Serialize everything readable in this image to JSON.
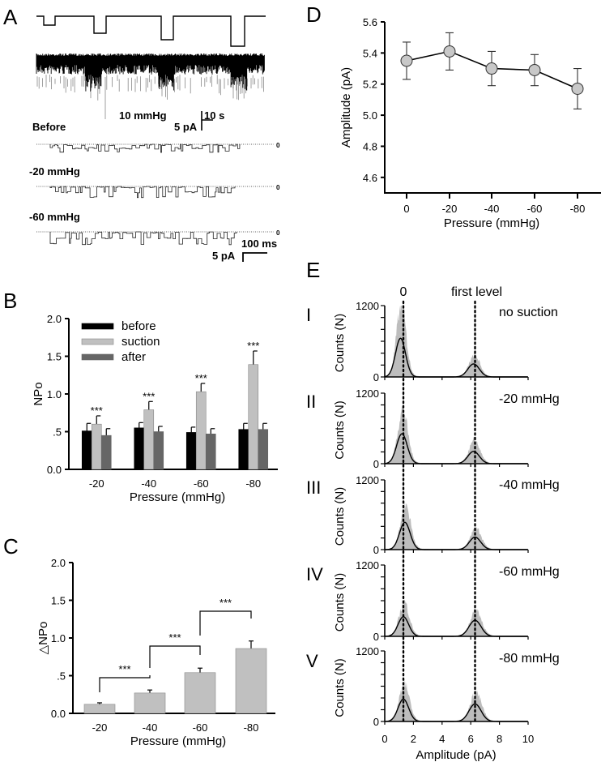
{
  "panels": {
    "A": {
      "label": "A",
      "scale_bar_1": {
        "pressure": "10 mmHg",
        "time": "10 s",
        "current": "5 pA"
      },
      "traces": [
        {
          "label": "Before",
          "zero": "0"
        },
        {
          "label": "-20 mmHg",
          "zero": "0"
        },
        {
          "label": "-60 mmHg",
          "zero": "0"
        }
      ],
      "scale_bar_2": {
        "time": "100 ms",
        "current": "5 pA"
      },
      "pressure_steps_mmHg": [
        -10,
        -20,
        -40,
        -60
      ]
    },
    "B": {
      "label": "B"
    },
    "C": {
      "label": "C"
    },
    "D": {
      "label": "D"
    },
    "E": {
      "label": "E"
    }
  },
  "chart_data": [
    {
      "id": "B",
      "type": "bar",
      "title": "",
      "xlabel": "Pressure (mmHg)",
      "ylabel": "NPo",
      "ylim": [
        0,
        2.0
      ],
      "yticks": [
        "0.0",
        ".5",
        "1.0",
        "1.5",
        "2.0"
      ],
      "ytick_values": [
        0,
        0.5,
        1.0,
        1.5,
        2.0
      ],
      "categories": [
        "-20",
        "-40",
        "-60",
        "-80"
      ],
      "legend": "top-left",
      "series": [
        {
          "name": "before",
          "color": "#000000",
          "values": [
            0.51,
            0.55,
            0.49,
            0.53
          ],
          "errors": [
            0.1,
            0.07,
            0.07,
            0.08
          ]
        },
        {
          "name": "suction",
          "color": "#c0c0c0",
          "values": [
            0.6,
            0.79,
            1.03,
            1.39
          ],
          "errors": [
            0.11,
            0.11,
            0.11,
            0.18
          ]
        },
        {
          "name": "after",
          "color": "#666666",
          "values": [
            0.45,
            0.5,
            0.47,
            0.53
          ],
          "errors": [
            0.09,
            0.07,
            0.07,
            0.08
          ]
        }
      ],
      "annotations": [
        "***",
        "***",
        "***",
        "***"
      ]
    },
    {
      "id": "C",
      "type": "bar",
      "title": "",
      "xlabel": "Pressure (mmHg)",
      "ylabel": "△NPo",
      "ylim": [
        0,
        2.0
      ],
      "yticks": [
        "0.0",
        ".5",
        "1.0",
        "1.5",
        "2.0"
      ],
      "ytick_values": [
        0,
        0.5,
        1.0,
        1.5,
        2.0
      ],
      "categories": [
        "-20",
        "-40",
        "-60",
        "-80"
      ],
      "color": "#c0c0c0",
      "values": [
        0.12,
        0.27,
        0.54,
        0.86
      ],
      "errors": [
        0.02,
        0.04,
        0.06,
        0.1
      ],
      "brackets": [
        {
          "from": "-20",
          "to": "-40",
          "label": "***"
        },
        {
          "from": "-40",
          "to": "-60",
          "label": "***"
        },
        {
          "from": "-60",
          "to": "-80",
          "label": "***"
        }
      ]
    },
    {
      "id": "D",
      "type": "line",
      "title": "",
      "xlabel": "Pressure (mmHg)",
      "ylabel": "Amplitude (pA)",
      "ylim": [
        4.5,
        5.6
      ],
      "yticks": [
        "4.6",
        "4.8",
        "5.0",
        "5.2",
        "5.4",
        "5.6"
      ],
      "ytick_values": [
        4.6,
        4.8,
        5.0,
        5.2,
        5.4,
        5.6
      ],
      "categories": [
        "0",
        "-20",
        "-40",
        "-60",
        "-80"
      ],
      "values": [
        5.35,
        5.41,
        5.3,
        5.29,
        5.17
      ],
      "errors": [
        0.12,
        0.12,
        0.11,
        0.1,
        0.13
      ],
      "marker_color": "#c8c8c8"
    },
    {
      "id": "E",
      "type": "area",
      "title": "",
      "xlabel": "Amplitude (pA)",
      "ylabel": "Counts (N)",
      "xlim": [
        0,
        10
      ],
      "xticks": [
        "0",
        "2",
        "4",
        "6",
        "8",
        "10"
      ],
      "xtick_values": [
        0,
        2,
        4,
        6,
        8,
        10
      ],
      "ylim": [
        0,
        1200
      ],
      "yticks": [
        "0",
        "1200"
      ],
      "ytick_values": [
        0,
        1200
      ],
      "reference_lines": [
        {
          "label": "0",
          "x": 1.3
        },
        {
          "label": "first level",
          "x": 6.3
        }
      ],
      "hist_color": "#bdbdbd",
      "subplots": [
        {
          "roman": "I",
          "condition": "no suction",
          "peak0": {
            "mean": 1.1,
            "sd": 0.35,
            "fit_height": 650,
            "hist_height": 1200
          },
          "peak1": {
            "mean": 6.2,
            "sd": 0.4,
            "fit_height": 220,
            "hist_height": 350
          }
        },
        {
          "roman": "II",
          "condition": "-20 mmHg",
          "peak0": {
            "mean": 1.2,
            "sd": 0.37,
            "fit_height": 510,
            "hist_height": 900
          },
          "peak1": {
            "mean": 6.2,
            "sd": 0.4,
            "fit_height": 210,
            "hist_height": 380
          }
        },
        {
          "roman": "III",
          "condition": "-40 mmHg",
          "peak0": {
            "mean": 1.4,
            "sd": 0.37,
            "fit_height": 470,
            "hist_height": 750
          },
          "peak1": {
            "mean": 6.3,
            "sd": 0.4,
            "fit_height": 215,
            "hist_height": 360
          }
        },
        {
          "roman": "IV",
          "condition": "-60 mmHg",
          "peak0": {
            "mean": 1.3,
            "sd": 0.37,
            "fit_height": 330,
            "hist_height": 550
          },
          "peak1": {
            "mean": 6.3,
            "sd": 0.42,
            "fit_height": 270,
            "hist_height": 430
          }
        },
        {
          "roman": "V",
          "condition": "-80 mmHg",
          "peak0": {
            "mean": 1.3,
            "sd": 0.37,
            "fit_height": 380,
            "hist_height": 630
          },
          "peak1": {
            "mean": 6.3,
            "sd": 0.42,
            "fit_height": 300,
            "hist_height": 480
          }
        }
      ]
    }
  ]
}
